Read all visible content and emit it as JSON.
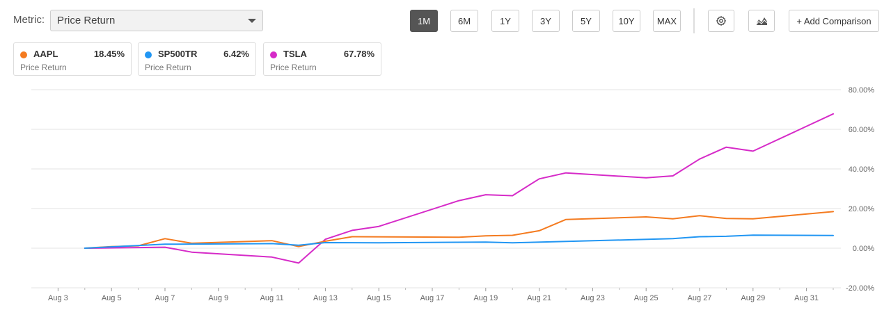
{
  "toolbar": {
    "metric_label": "Metric:",
    "metric_value": "Price Return",
    "ranges": [
      "1M",
      "6M",
      "1Y",
      "3Y",
      "5Y",
      "10Y",
      "MAX"
    ],
    "active_range": "1M",
    "settings_icon": "gear-icon",
    "chart_type_icon": "area-chart-icon",
    "add_label": "+ Add Comparison"
  },
  "legend_cards": [
    {
      "ticker": "AAPL",
      "value": "18.45%",
      "sub": "Price Return",
      "color": "#f47b20"
    },
    {
      "ticker": "SP500TR",
      "value": "6.42%",
      "sub": "Price Return",
      "color": "#2196f3"
    },
    {
      "ticker": "TSLA",
      "value": "67.78%",
      "sub": "Price Return",
      "color": "#d62bc8"
    }
  ],
  "chart_data": {
    "type": "line",
    "title": "",
    "xlabel": "",
    "ylabel": "",
    "x_ticks": [
      "Aug 3",
      "Aug 5",
      "Aug 7",
      "Aug 9",
      "Aug 11",
      "Aug 13",
      "Aug 15",
      "Aug 17",
      "Aug 19",
      "Aug 21",
      "Aug 23",
      "Aug 25",
      "Aug 27",
      "Aug 29",
      "Aug 31"
    ],
    "x_range": [
      "Aug 2",
      "Aug 32"
    ],
    "y_ticks": [
      "80.00%",
      "60.00%",
      "40.00%",
      "20.00%",
      "0.00%",
      "-20.00%"
    ],
    "ylim": [
      -20,
      80
    ],
    "grid": true,
    "y_axis_position": "right",
    "series": [
      {
        "name": "TSLA",
        "color": "#d62bc8",
        "points": [
          [
            "Aug 4",
            0
          ],
          [
            "Aug 6",
            0.3
          ],
          [
            "Aug 7",
            0.5
          ],
          [
            "Aug 8",
            -2
          ],
          [
            "Aug 11",
            -4.5
          ],
          [
            "Aug 12",
            -7.5
          ],
          [
            "Aug 13",
            4.5
          ],
          [
            "Aug 14",
            9
          ],
          [
            "Aug 15",
            11
          ],
          [
            "Aug 18",
            24
          ],
          [
            "Aug 19",
            27
          ],
          [
            "Aug 20",
            26.5
          ],
          [
            "Aug 21",
            35
          ],
          [
            "Aug 22",
            38
          ],
          [
            "Aug 25",
            35.5
          ],
          [
            "Aug 26",
            36.5
          ],
          [
            "Aug 27",
            45
          ],
          [
            "Aug 28",
            51
          ],
          [
            "Aug 29",
            49
          ],
          [
            "Sep 1",
            67.78
          ]
        ]
      },
      {
        "name": "AAPL",
        "color": "#f47b20",
        "points": [
          [
            "Aug 4",
            0
          ],
          [
            "Aug 5",
            0.8
          ],
          [
            "Aug 6",
            1.2
          ],
          [
            "Aug 7",
            4.8
          ],
          [
            "Aug 8",
            2.5
          ],
          [
            "Aug 11",
            3.8
          ],
          [
            "Aug 12",
            0.8
          ],
          [
            "Aug 13",
            3.5
          ],
          [
            "Aug 14",
            5.8
          ],
          [
            "Aug 18",
            5.5
          ],
          [
            "Aug 19",
            6.2
          ],
          [
            "Aug 20",
            6.5
          ],
          [
            "Aug 21",
            8.8
          ],
          [
            "Aug 22",
            14.5
          ],
          [
            "Aug 25",
            15.8
          ],
          [
            "Aug 26",
            14.8
          ],
          [
            "Aug 27",
            16.4
          ],
          [
            "Aug 28",
            15
          ],
          [
            "Aug 29",
            14.8
          ],
          [
            "Sep 1",
            18.45
          ]
        ]
      },
      {
        "name": "SP500TR",
        "color": "#2196f3",
        "points": [
          [
            "Aug 4",
            0
          ],
          [
            "Aug 7",
            2
          ],
          [
            "Aug 11",
            2.3
          ],
          [
            "Aug 12",
            1.5
          ],
          [
            "Aug 13",
            2.8
          ],
          [
            "Aug 15",
            2.7
          ],
          [
            "Aug 19",
            3.1
          ],
          [
            "Aug 20",
            2.7
          ],
          [
            "Aug 26",
            4.8
          ],
          [
            "Aug 27",
            5.8
          ],
          [
            "Aug 28",
            6
          ],
          [
            "Aug 29",
            6.6
          ],
          [
            "Sep 1",
            6.42
          ]
        ]
      }
    ]
  }
}
